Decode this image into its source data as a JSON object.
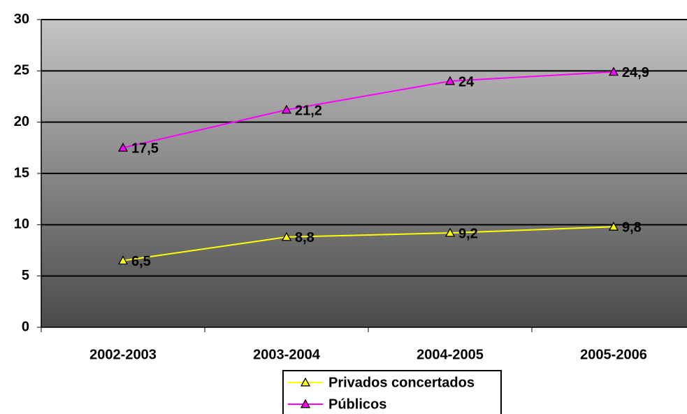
{
  "chart_data": {
    "type": "line",
    "categories": [
      "2002-2003",
      "2003-2004",
      "2004-2005",
      "2005-2006"
    ],
    "series": [
      {
        "name": "Privados concertados",
        "color": "#ffff00",
        "values": [
          6.5,
          8.8,
          9.2,
          9.8
        ],
        "value_labels": [
          "6,5",
          "8,8",
          "9,2",
          "9,8"
        ]
      },
      {
        "name": "Públicos",
        "color": "#ff00ff",
        "values": [
          17.5,
          21.2,
          24,
          24.9
        ],
        "value_labels": [
          "17,5",
          "21,2",
          "24",
          "24,9"
        ]
      }
    ],
    "ylim": [
      0,
      30
    ],
    "yticks": [
      0,
      5,
      10,
      15,
      20,
      25,
      30
    ],
    "grid": true,
    "legend": "bottom"
  }
}
